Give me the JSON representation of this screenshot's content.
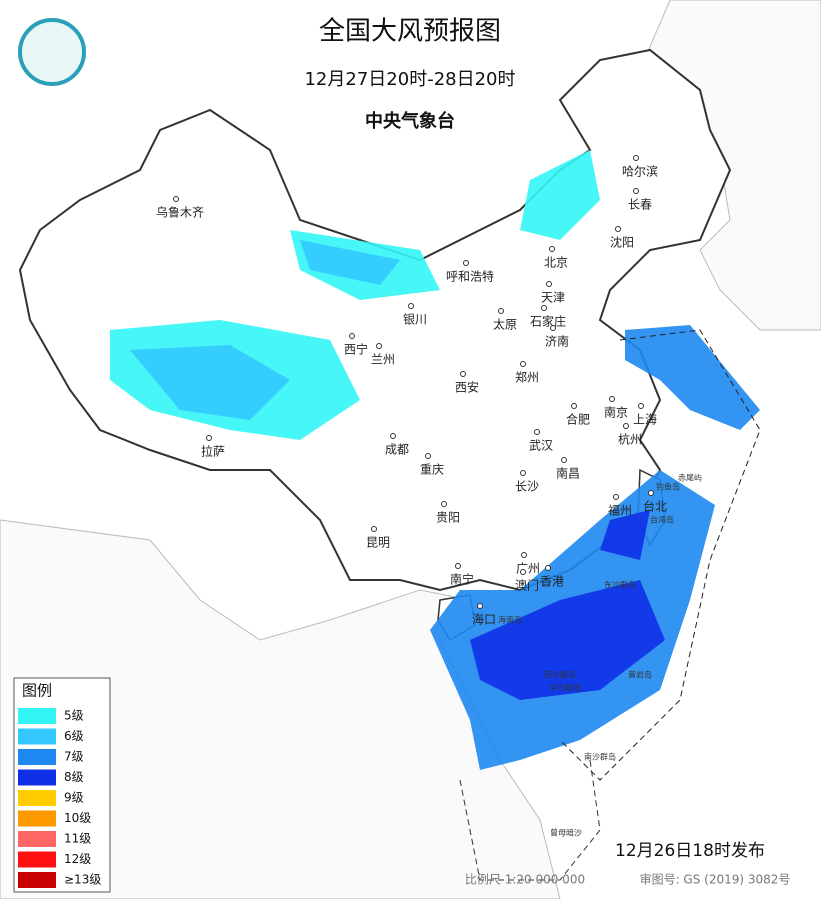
{
  "header": {
    "title": "全国大风预报图",
    "period": "12月27日20时-28日20时",
    "issuer": "中央气象台"
  },
  "legend": {
    "title": "图例",
    "items": [
      {
        "label": "5级",
        "color": "#33f5f5"
      },
      {
        "label": "6级",
        "color": "#33c8ff"
      },
      {
        "label": "7级",
        "color": "#1e88f0"
      },
      {
        "label": "8级",
        "color": "#1030e8"
      },
      {
        "label": "9级",
        "color": "#ffcc00"
      },
      {
        "label": "10级",
        "color": "#ff9900"
      },
      {
        "label": "11级",
        "color": "#ff6666"
      },
      {
        "label": "12级",
        "color": "#ff1010"
      },
      {
        "label": "≥13级",
        "color": "#c80000"
      }
    ]
  },
  "cities": [
    "乌鲁木齐",
    "哈尔滨",
    "长春",
    "沈阳",
    "北京",
    "天津",
    "呼和浩特",
    "银川",
    "太原",
    "石家庄",
    "济南",
    "西宁",
    "兰州",
    "郑州",
    "西安",
    "南京",
    "上海",
    "合肥",
    "杭州",
    "成都",
    "武汉",
    "重庆",
    "南昌",
    "长沙",
    "拉萨",
    "福州",
    "台北",
    "贵阳",
    "昆明",
    "南宁",
    "广州",
    "澳门",
    "香港",
    "海口"
  ],
  "islands": [
    "海南岛",
    "东沙群岛",
    "西沙群岛",
    "中沙群岛",
    "黄岩岛",
    "南沙群岛",
    "曾母暗沙",
    "台湾岛",
    "赤尾屿",
    "钓鱼岛"
  ],
  "footer": {
    "release": "12月26日18时发布",
    "scale": "比例尺 1:20 000 000",
    "approval": "审图号: GS (2019) 3082号"
  }
}
